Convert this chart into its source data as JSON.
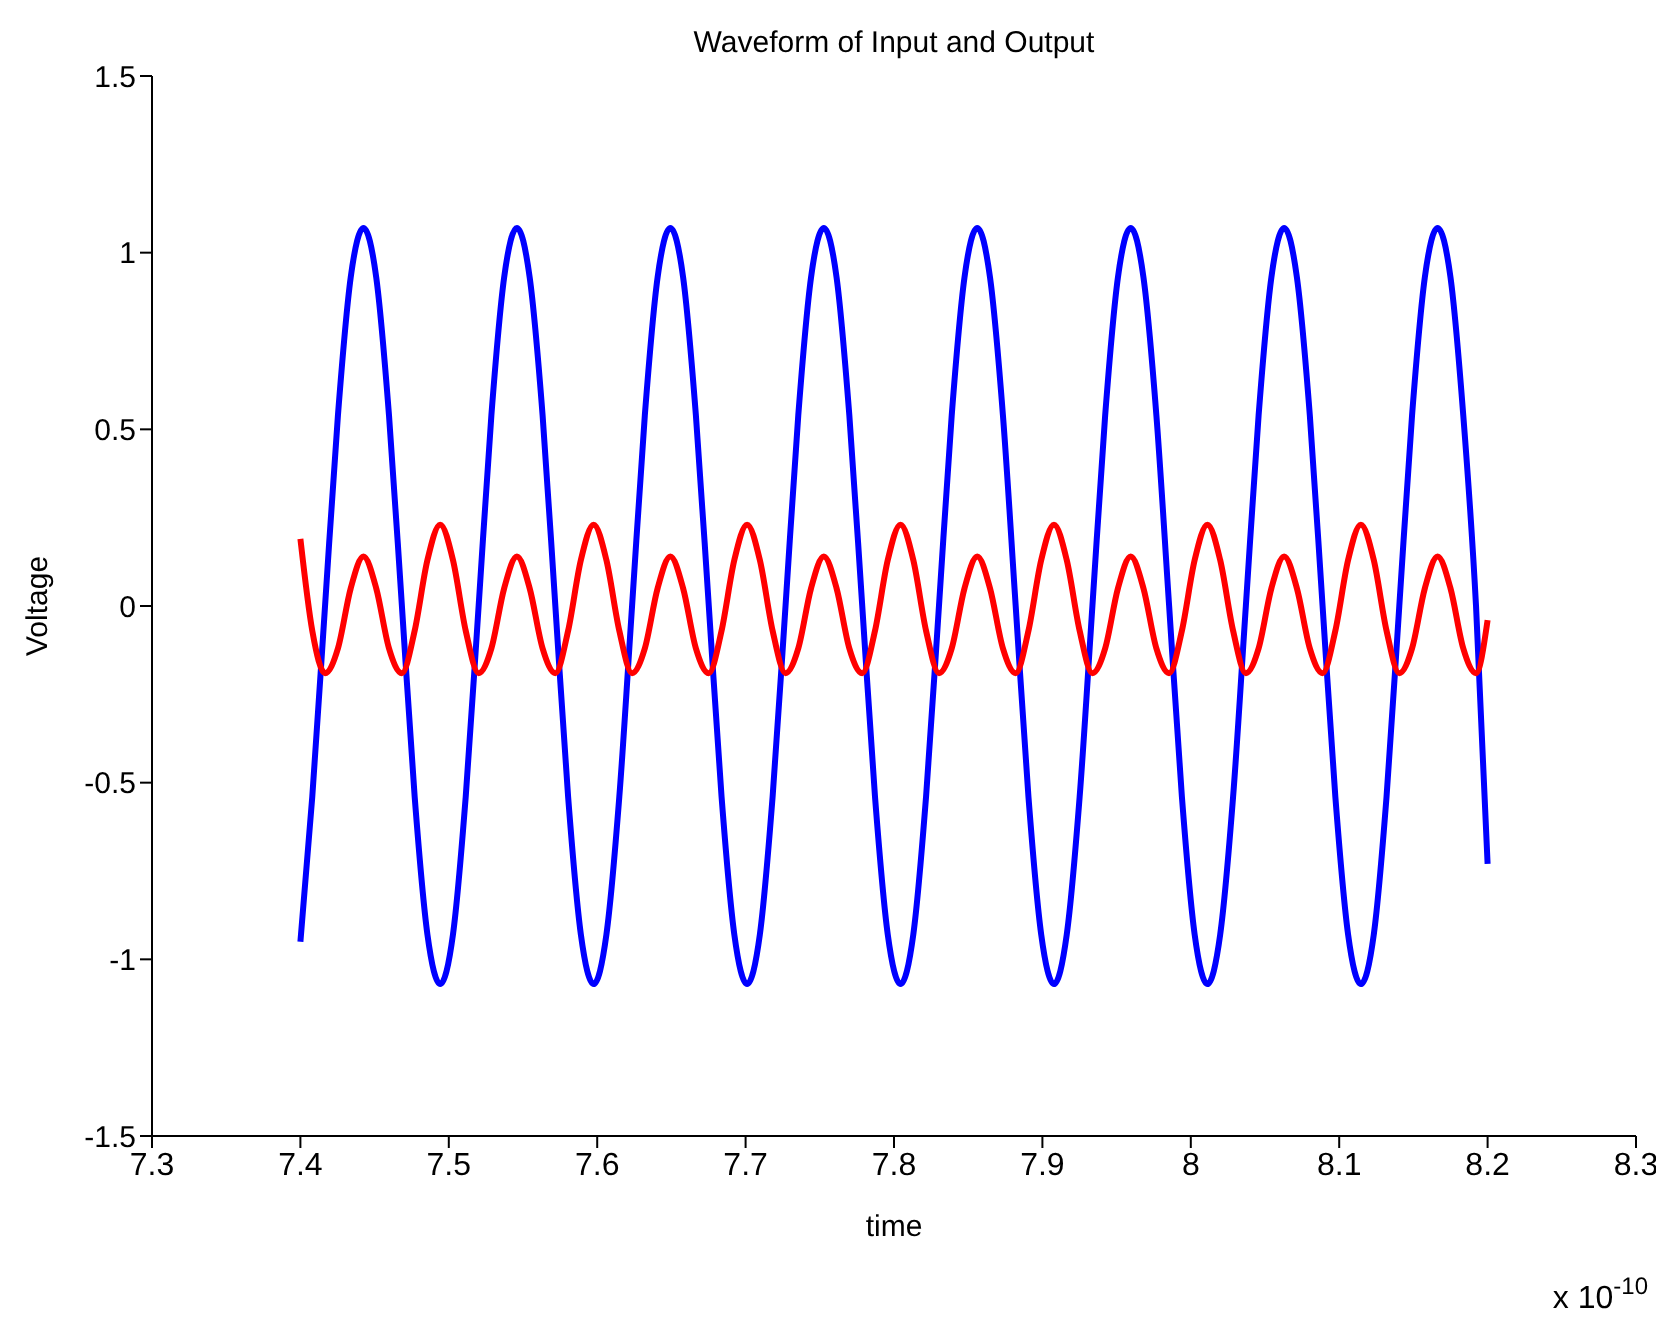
{
  "chart_data": {
    "type": "line",
    "title": "Waveform of Input and Output",
    "xlabel": "time",
    "ylabel": "Voltage",
    "annotations": [
      "x 10$^{-10}$"
    ],
    "x": [
      7.4,
      7.408,
      7.4166,
      7.4253,
      7.4339,
      7.4425,
      7.4511,
      7.4597,
      7.4684,
      7.477,
      7.4856,
      7.4942,
      7.5028,
      7.5114,
      7.5201,
      7.5287,
      7.5373,
      7.5459,
      7.5545,
      7.5632,
      7.5718,
      7.5804,
      7.589,
      7.5976,
      7.6062,
      7.6149,
      7.6235,
      7.6321,
      7.6407,
      7.6493,
      7.6579,
      7.6665,
      7.6752,
      7.6838,
      7.6924,
      7.701,
      7.7096,
      7.7182,
      7.7269,
      7.7355,
      7.7441,
      7.7527,
      7.7613,
      7.7699,
      7.7786,
      7.7872,
      7.7958,
      7.8044,
      7.813,
      7.8216,
      7.8303,
      7.8389,
      7.8475,
      7.8561,
      7.8647,
      7.8734,
      7.882,
      7.8906,
      7.8992,
      7.9078,
      7.9164,
      7.9251,
      7.9337,
      7.9423,
      7.9509,
      7.9595,
      7.9681,
      7.9768,
      7.9854,
      7.994,
      8.0026,
      8.0112,
      8.0198,
      8.0285,
      8.0371,
      8.0457,
      8.0543,
      8.0629,
      8.0715,
      8.0802,
      8.0888,
      8.0974,
      8.106,
      8.1146,
      8.1233,
      8.1319,
      8.1405,
      8.1491,
      8.1577,
      8.1663,
      8.175,
      8.1836,
      8.1922,
      8.2
    ],
    "series": [
      {
        "color": "#0000ff",
        "values": [
          -0.95,
          -0.54,
          0,
          0.54,
          0.93,
          1.07,
          0.93,
          0.54,
          0,
          -0.54,
          -0.93,
          -1.07,
          -0.93,
          -0.54,
          0,
          0.54,
          0.93,
          1.07,
          0.93,
          0.54,
          0,
          -0.54,
          -0.93,
          -1.07,
          -0.93,
          -0.54,
          0,
          0.54,
          0.93,
          1.07,
          0.93,
          0.54,
          0,
          -0.54,
          -0.93,
          -1.07,
          -0.93,
          -0.54,
          0,
          0.54,
          0.93,
          1.07,
          0.93,
          0.54,
          0,
          -0.54,
          -0.93,
          -1.07,
          -0.93,
          -0.54,
          0,
          0.54,
          0.93,
          1.07,
          0.93,
          0.54,
          0,
          -0.54,
          -0.93,
          -1.07,
          -0.93,
          -0.54,
          0,
          0.54,
          0.93,
          1.07,
          0.93,
          0.54,
          0,
          -0.54,
          -0.93,
          -1.07,
          -0.93,
          -0.54,
          0,
          0.54,
          0.93,
          1.07,
          0.93,
          0.54,
          0,
          -0.54,
          -0.93,
          -1.07,
          -0.93,
          -0.54,
          0,
          0.54,
          0.93,
          1.07,
          0.93,
          0.54,
          0,
          -0.73
        ]
      },
      {
        "color": "#ff0000",
        "values": [
          0.19,
          -0.07,
          -0.19,
          -0.12,
          0.05,
          0.14,
          0.05,
          -0.12,
          -0.19,
          -0.07,
          0.13,
          0.23,
          0.13,
          -0.07,
          -0.19,
          -0.12,
          0.05,
          0.14,
          0.05,
          -0.12,
          -0.19,
          -0.07,
          0.13,
          0.23,
          0.13,
          -0.07,
          -0.19,
          -0.12,
          0.05,
          0.14,
          0.05,
          -0.12,
          -0.19,
          -0.07,
          0.13,
          0.23,
          0.13,
          -0.07,
          -0.19,
          -0.12,
          0.05,
          0.14,
          0.05,
          -0.12,
          -0.19,
          -0.07,
          0.13,
          0.23,
          0.13,
          -0.07,
          -0.19,
          -0.12,
          0.05,
          0.14,
          0.05,
          -0.12,
          -0.19,
          -0.07,
          0.13,
          0.23,
          0.13,
          -0.07,
          -0.19,
          -0.12,
          0.05,
          0.14,
          0.05,
          -0.12,
          -0.19,
          -0.07,
          0.13,
          0.23,
          0.13,
          -0.07,
          -0.19,
          -0.12,
          0.05,
          0.14,
          0.05,
          -0.12,
          -0.19,
          -0.07,
          0.13,
          0.23,
          0.13,
          -0.07,
          -0.19,
          -0.12,
          0.05,
          0.14,
          0.05,
          -0.12,
          -0.19,
          -0.04
        ]
      }
    ],
    "xlim": [
      7.3,
      8.3
    ],
    "xticks": [
      7.3,
      7.4,
      7.5,
      7.6,
      7.7,
      7.8,
      7.9,
      8,
      8.1,
      8.2,
      8.3
    ],
    "ylim": [
      -1.5,
      1.5
    ],
    "yticks": [
      -1.5,
      -1,
      -0.5,
      0,
      0.5,
      1,
      1.5
    ],
    "grid": false,
    "legend": false,
    "marker": "none",
    "line_style": "solid"
  }
}
